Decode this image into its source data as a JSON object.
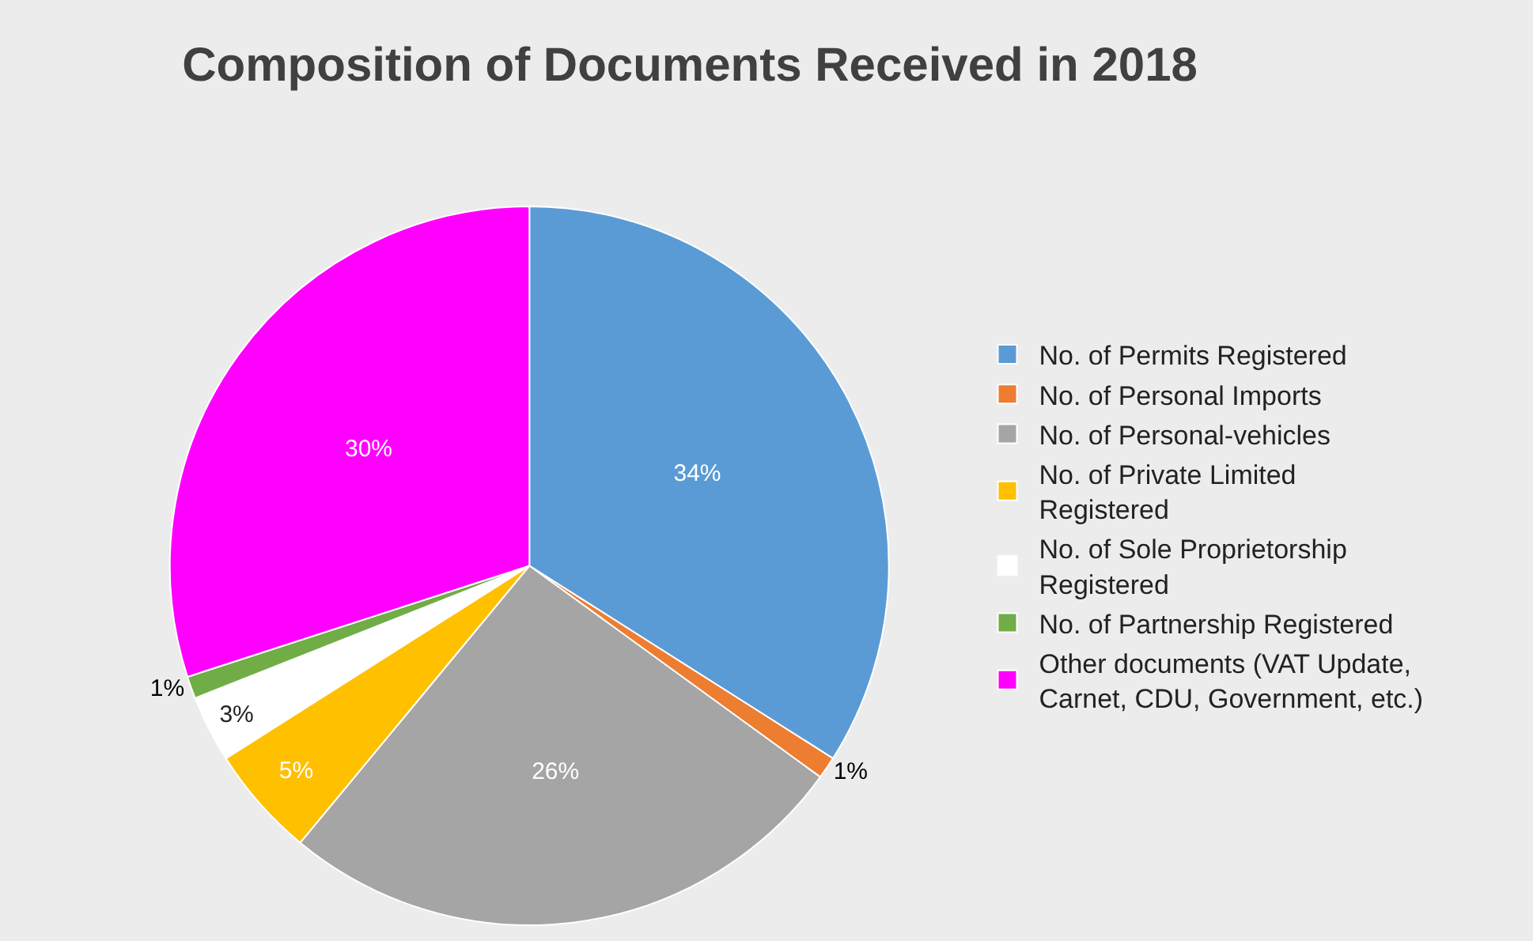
{
  "chart_data": {
    "type": "pie",
    "title": "Composition of Documents Received in 2018",
    "categories": [
      "No. of Permits Registered",
      "No. of Personal Imports",
      "No. of Personal-vehicles",
      "No. of Private Limited Registered",
      "No. of Sole Proprietorship Registered",
      "No. of Partnership Registered",
      "Other documents (VAT Update, Carnet, CDU, Government, etc.)"
    ],
    "values": [
      34,
      1,
      26,
      5,
      3,
      1,
      30
    ],
    "colors": [
      "#5b9bd5",
      "#ed7d31",
      "#a5a5a5",
      "#ffc000",
      "#ffffff",
      "#70ad47",
      "#ff00ff"
    ],
    "value_labels": [
      "34%",
      "1%",
      "26%",
      "5%",
      "3%",
      "1%",
      "30%"
    ],
    "legend": "right"
  }
}
